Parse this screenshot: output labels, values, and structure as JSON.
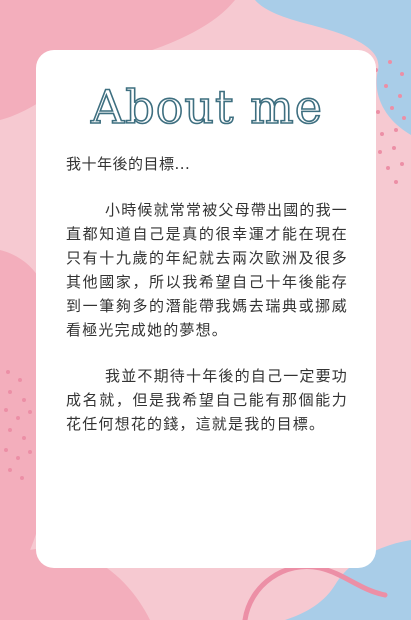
{
  "title": "About me",
  "intro": "我十年後的目標...",
  "paragraphs": [
    "小時候就常常被父母帶出國的我一直都知道自己是真的很幸運才能在現在只有十九歲的年紀就去兩次歐洲及很多其他國家，所以我希望自己十年後能存到一筆夠多的潛能帶我媽去瑞典或挪威看極光完成她的夢想。",
    "我並不期待十年後的自己一定要功成名就，但是我希望自己能有那個能力花任何想花的錢，這就是我的目標。"
  ],
  "colors": {
    "background_pink": "#f6c9d1",
    "blob_blue": "#a9cde8",
    "blob_pink": "#f3aebc",
    "dots": "#ec8fa6",
    "title_outline": "#3e6f80",
    "text": "#333333"
  }
}
